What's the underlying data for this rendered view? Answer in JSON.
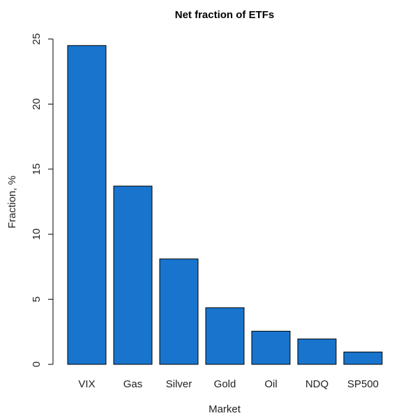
{
  "chart_data": {
    "type": "bar",
    "title": "Net fraction of ETFs",
    "xlabel": "Market",
    "ylabel": "Fraction, %",
    "categories": [
      "VIX",
      "Gas",
      "Silver",
      "Gold",
      "Oil",
      "NDQ",
      "SP500"
    ],
    "values": [
      24.5,
      13.7,
      8.1,
      4.35,
      2.55,
      1.95,
      0.95
    ],
    "ylim": [
      0,
      25
    ],
    "yticks": [
      0,
      5,
      10,
      15,
      20,
      25
    ],
    "ytick_labels": [
      "0",
      "5",
      "10",
      "15",
      "20",
      "25"
    ],
    "bar_color": "#1874cd",
    "grid": false
  }
}
